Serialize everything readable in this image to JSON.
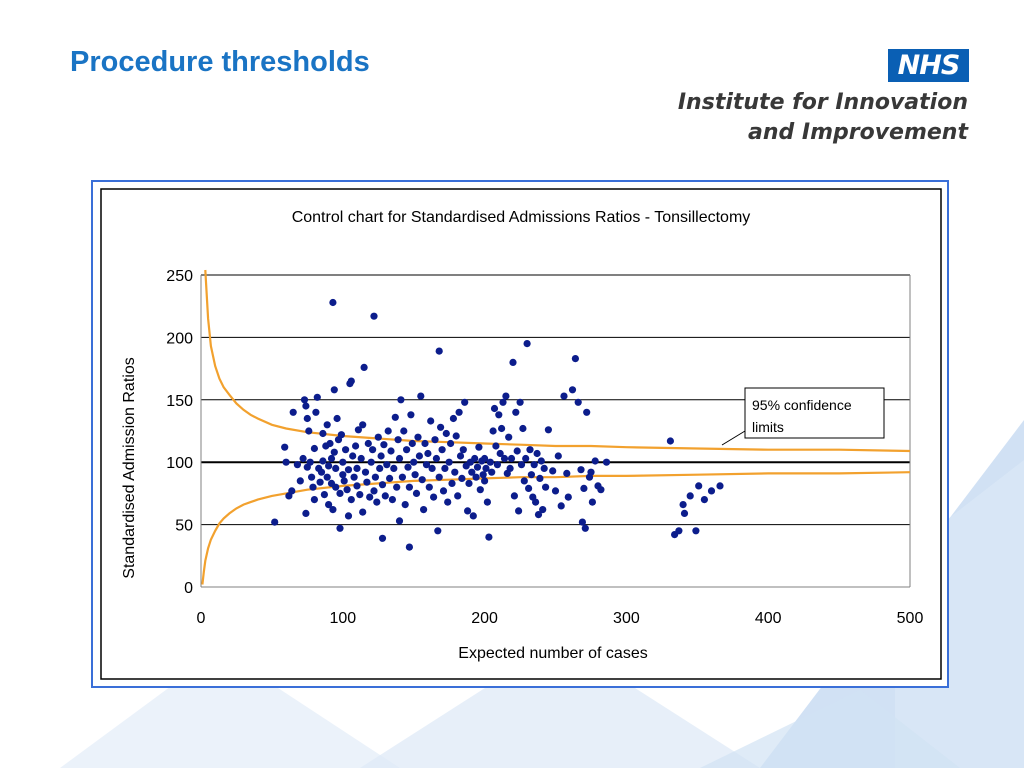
{
  "slide": {
    "title": "Procedure thresholds",
    "logo": {
      "badge": "NHS",
      "org_line1": "Institute for Innovation",
      "org_line2": "and Improvement",
      "badge_color": "#0a5fb4",
      "org_color": "#383838"
    },
    "colors": {
      "title": "#1a74c4",
      "frame_border": "#3a6fd8",
      "background_accent": "#c9dcf2"
    }
  },
  "chart_data": {
    "type": "scatter",
    "title": "Control chart for Standardised Admissions Ratios - Tonsillectomy",
    "xlabel": "Expected number of cases",
    "ylabel": "Standardised Admission Ratios",
    "xlim": [
      0,
      500
    ],
    "ylim": [
      0,
      250
    ],
    "x_ticks": [
      0,
      100,
      200,
      300,
      400,
      500
    ],
    "y_ticks": [
      0,
      50,
      100,
      150,
      200,
      250
    ],
    "grid": "horizontal",
    "point_color": "#0c1d8c",
    "limit_color": "#f2a12e",
    "reference_line": {
      "y": 100
    },
    "annotation": {
      "text_line1": "95% confidence",
      "text_line2": "limits"
    },
    "confidence_limits": {
      "upper": [
        [
          3,
          254
        ],
        [
          5,
          215
        ],
        [
          7,
          193
        ],
        [
          10,
          177
        ],
        [
          13,
          167
        ],
        [
          16,
          160
        ],
        [
          20,
          154
        ],
        [
          25,
          147
        ],
        [
          30,
          142
        ],
        [
          35,
          138
        ],
        [
          40,
          135
        ],
        [
          50,
          130
        ],
        [
          60,
          127
        ],
        [
          75,
          124
        ],
        [
          100,
          121
        ],
        [
          125,
          119
        ],
        [
          150,
          117
        ],
        [
          175,
          116
        ],
        [
          200,
          115
        ],
        [
          225,
          114
        ],
        [
          250,
          113
        ],
        [
          275,
          113
        ],
        [
          300,
          112
        ],
        [
          350,
          111
        ],
        [
          400,
          110
        ],
        [
          450,
          110
        ],
        [
          500,
          109
        ]
      ],
      "lower": [
        [
          1,
          2
        ],
        [
          2,
          12
        ],
        [
          3,
          21
        ],
        [
          5,
          31
        ],
        [
          7,
          38
        ],
        [
          10,
          45
        ],
        [
          13,
          51
        ],
        [
          16,
          55
        ],
        [
          20,
          59
        ],
        [
          25,
          63
        ],
        [
          30,
          66
        ],
        [
          35,
          68
        ],
        [
          40,
          70
        ],
        [
          50,
          73
        ],
        [
          60,
          75
        ],
        [
          75,
          78
        ],
        [
          100,
          81
        ],
        [
          125,
          83
        ],
        [
          150,
          85
        ],
        [
          175,
          86
        ],
        [
          200,
          87
        ],
        [
          225,
          88
        ],
        [
          250,
          88
        ],
        [
          275,
          89
        ],
        [
          300,
          89
        ],
        [
          350,
          90
        ],
        [
          400,
          91
        ],
        [
          450,
          91
        ],
        [
          500,
          92
        ]
      ]
    },
    "points": [
      [
        52,
        52
      ],
      [
        59,
        112
      ],
      [
        60,
        100
      ],
      [
        62,
        73
      ],
      [
        64,
        77
      ],
      [
        65,
        140
      ],
      [
        68,
        98
      ],
      [
        70,
        85
      ],
      [
        72,
        103
      ],
      [
        73,
        150
      ],
      [
        74,
        145
      ],
      [
        74,
        59
      ],
      [
        75,
        96
      ],
      [
        75,
        135
      ],
      [
        76,
        125
      ],
      [
        77,
        100
      ],
      [
        78,
        88
      ],
      [
        79,
        80
      ],
      [
        80,
        111
      ],
      [
        80,
        70
      ],
      [
        81,
        140
      ],
      [
        82,
        152
      ],
      [
        83,
        95
      ],
      [
        84,
        84
      ],
      [
        85,
        92
      ],
      [
        86,
        123
      ],
      [
        86,
        101
      ],
      [
        87,
        74
      ],
      [
        88,
        113
      ],
      [
        89,
        130
      ],
      [
        89,
        88
      ],
      [
        90,
        66
      ],
      [
        90,
        97
      ],
      [
        91,
        115
      ],
      [
        92,
        83
      ],
      [
        92,
        103
      ],
      [
        93,
        228
      ],
      [
        93,
        62
      ],
      [
        94,
        158
      ],
      [
        94,
        108
      ],
      [
        95,
        80
      ],
      [
        95,
        95
      ],
      [
        96,
        135
      ],
      [
        97,
        118
      ],
      [
        98,
        75
      ],
      [
        98,
        47
      ],
      [
        99,
        122
      ],
      [
        100,
        100
      ],
      [
        100,
        90
      ],
      [
        101,
        85
      ],
      [
        102,
        110
      ],
      [
        103,
        78
      ],
      [
        104,
        94
      ],
      [
        104,
        57
      ],
      [
        105,
        163
      ],
      [
        106,
        165
      ],
      [
        106,
        70
      ],
      [
        107,
        105
      ],
      [
        108,
        88
      ],
      [
        109,
        113
      ],
      [
        110,
        95
      ],
      [
        110,
        81
      ],
      [
        111,
        126
      ],
      [
        112,
        74
      ],
      [
        113,
        103
      ],
      [
        114,
        130
      ],
      [
        114,
        60
      ],
      [
        115,
        176
      ],
      [
        116,
        92
      ],
      [
        117,
        84
      ],
      [
        118,
        115
      ],
      [
        119,
        72
      ],
      [
        120,
        100
      ],
      [
        121,
        110
      ],
      [
        122,
        217
      ],
      [
        122,
        77
      ],
      [
        123,
        88
      ],
      [
        124,
        68
      ],
      [
        125,
        120
      ],
      [
        126,
        95
      ],
      [
        127,
        105
      ],
      [
        128,
        39
      ],
      [
        128,
        82
      ],
      [
        129,
        114
      ],
      [
        130,
        73
      ],
      [
        131,
        98
      ],
      [
        132,
        125
      ],
      [
        133,
        87
      ],
      [
        134,
        109
      ],
      [
        135,
        70
      ],
      [
        136,
        95
      ],
      [
        137,
        136
      ],
      [
        138,
        80
      ],
      [
        139,
        118
      ],
      [
        140,
        103
      ],
      [
        140,
        53
      ],
      [
        141,
        150
      ],
      [
        142,
        88
      ],
      [
        143,
        125
      ],
      [
        144,
        66
      ],
      [
        145,
        110
      ],
      [
        146,
        96
      ],
      [
        147,
        32
      ],
      [
        147,
        80
      ],
      [
        148,
        138
      ],
      [
        149,
        115
      ],
      [
        150,
        100
      ],
      [
        151,
        90
      ],
      [
        152,
        75
      ],
      [
        153,
        120
      ],
      [
        154,
        105
      ],
      [
        155,
        153
      ],
      [
        156,
        86
      ],
      [
        157,
        62
      ],
      [
        158,
        115
      ],
      [
        159,
        98
      ],
      [
        160,
        107
      ],
      [
        161,
        80
      ],
      [
        162,
        133
      ],
      [
        163,
        95
      ],
      [
        164,
        72
      ],
      [
        165,
        118
      ],
      [
        166,
        103
      ],
      [
        167,
        45
      ],
      [
        168,
        189
      ],
      [
        168,
        88
      ],
      [
        169,
        128
      ],
      [
        170,
        110
      ],
      [
        171,
        77
      ],
      [
        172,
        95
      ],
      [
        173,
        123
      ],
      [
        174,
        68
      ],
      [
        175,
        100
      ],
      [
        176,
        115
      ],
      [
        177,
        83
      ],
      [
        178,
        135
      ],
      [
        179,
        92
      ],
      [
        180,
        121
      ],
      [
        181,
        73
      ],
      [
        182,
        140
      ],
      [
        183,
        105
      ],
      [
        184,
        87
      ],
      [
        185,
        110
      ],
      [
        186,
        148
      ],
      [
        187,
        97
      ],
      [
        188,
        61
      ],
      [
        189,
        83
      ],
      [
        190,
        100
      ],
      [
        191,
        92
      ],
      [
        192,
        57
      ],
      [
        193,
        103
      ],
      [
        194,
        88
      ],
      [
        195,
        96
      ],
      [
        196,
        112
      ],
      [
        197,
        78
      ],
      [
        198,
        101
      ],
      [
        199,
        90
      ],
      [
        200,
        85
      ],
      [
        200,
        103
      ],
      [
        201,
        95
      ],
      [
        202,
        68
      ],
      [
        203,
        40
      ],
      [
        204,
        100
      ],
      [
        205,
        92
      ],
      [
        206,
        125
      ],
      [
        207,
        143
      ],
      [
        208,
        113
      ],
      [
        209,
        98
      ],
      [
        210,
        138
      ],
      [
        211,
        107
      ],
      [
        212,
        127
      ],
      [
        213,
        148
      ],
      [
        214,
        103
      ],
      [
        215,
        153
      ],
      [
        216,
        91
      ],
      [
        217,
        120
      ],
      [
        218,
        95
      ],
      [
        219,
        103
      ],
      [
        220,
        180
      ],
      [
        221,
        73
      ],
      [
        222,
        140
      ],
      [
        223,
        109
      ],
      [
        224,
        61
      ],
      [
        225,
        148
      ],
      [
        226,
        98
      ],
      [
        227,
        127
      ],
      [
        228,
        85
      ],
      [
        229,
        103
      ],
      [
        230,
        195
      ],
      [
        231,
        79
      ],
      [
        232,
        110
      ],
      [
        233,
        90
      ],
      [
        234,
        72
      ],
      [
        235,
        98
      ],
      [
        236,
        68
      ],
      [
        237,
        107
      ],
      [
        238,
        58
      ],
      [
        239,
        87
      ],
      [
        240,
        101
      ],
      [
        241,
        62
      ],
      [
        242,
        95
      ],
      [
        243,
        80
      ],
      [
        245,
        126
      ],
      [
        248,
        93
      ],
      [
        250,
        77
      ],
      [
        252,
        105
      ],
      [
        254,
        65
      ],
      [
        256,
        153
      ],
      [
        258,
        91
      ],
      [
        259,
        72
      ],
      [
        262,
        158
      ],
      [
        264,
        183
      ],
      [
        266,
        148
      ],
      [
        268,
        94
      ],
      [
        269,
        52
      ],
      [
        270,
        79
      ],
      [
        271,
        47
      ],
      [
        272,
        140
      ],
      [
        274,
        88
      ],
      [
        275,
        92
      ],
      [
        276,
        68
      ],
      [
        278,
        101
      ],
      [
        280,
        81
      ],
      [
        282,
        78
      ],
      [
        286,
        100
      ],
      [
        331,
        117
      ],
      [
        334,
        42
      ],
      [
        337,
        45
      ],
      [
        340,
        66
      ],
      [
        341,
        59
      ],
      [
        345,
        73
      ],
      [
        349,
        45
      ],
      [
        351,
        81
      ],
      [
        355,
        70
      ],
      [
        360,
        77
      ],
      [
        366,
        81
      ]
    ]
  }
}
